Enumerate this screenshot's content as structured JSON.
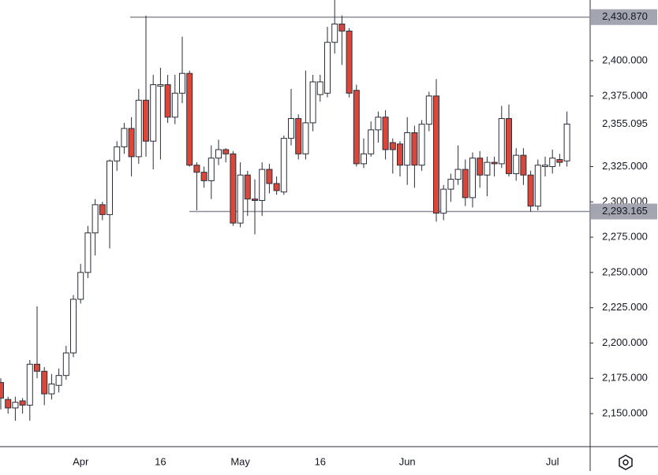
{
  "chart_data": {
    "type": "candlestick",
    "categories": [
      null,
      null,
      null,
      null,
      null,
      null,
      null,
      null,
      null,
      null,
      null,
      "Apr",
      null,
      null,
      null,
      null,
      null,
      null,
      null,
      null,
      null,
      null,
      "16",
      null,
      null,
      null,
      null,
      null,
      null,
      null,
      null,
      null,
      null,
      "May",
      null,
      null,
      null,
      null,
      null,
      null,
      null,
      null,
      null,
      null,
      "16",
      null,
      null,
      null,
      null,
      null,
      null,
      null,
      null,
      null,
      null,
      null,
      "Jun",
      null,
      null,
      null,
      null,
      null,
      null,
      null,
      null,
      null,
      null,
      null,
      null,
      null,
      null,
      null,
      null,
      null,
      null,
      null,
      "Jul",
      null,
      null
    ],
    "open": [
      2172,
      2160,
      2154,
      2159,
      2156,
      2185,
      2180,
      2164,
      2170,
      2177,
      2193,
      2231,
      2250,
      2278,
      2298,
      2291,
      2329,
      2339,
      2352,
      2332,
      2372,
      2343,
      2382,
      2383,
      2360,
      2377,
      2391,
      2326,
      2321,
      2315,
      2331,
      2337,
      2334,
      2285,
      2319,
      2302,
      2301,
      2323,
      2313,
      2307,
      2345,
      2359,
      2334,
      2356,
      2376,
      2377,
      2413,
      2426,
      2421,
      2379,
      2327,
      2334,
      2351,
      2360,
      2342,
      2341,
      2326,
      2349,
      2326,
      2355,
      2375,
      2292,
      2309,
      2316,
      2323,
      2303,
      2331,
      2319,
      2328,
      2327,
      2359,
      2320,
      2333,
      2319,
      2297,
      2325,
      2325,
      2330,
      2329
    ],
    "high": [
      2175,
      2162,
      2162,
      2161,
      2188,
      2226,
      2183,
      2178,
      2182,
      2198,
      2234,
      2256,
      2283,
      2302,
      2300,
      2330,
      2343,
      2356,
      2360,
      2380,
      2432,
      2390,
      2395,
      2390,
      2390,
      2417,
      2393,
      2328,
      2325,
      2340,
      2344,
      2338,
      2336,
      2328,
      2322,
      2316,
      2328,
      2327,
      2318,
      2347,
      2380,
      2362,
      2393,
      2390,
      2390,
      2424,
      2443,
      2432,
      2423,
      2383,
      2345,
      2357,
      2364,
      2365,
      2345,
      2343,
      2360,
      2354,
      2358,
      2378,
      2387,
      2312,
      2320,
      2340,
      2330,
      2335,
      2336,
      2332,
      2332,
      2368,
      2369,
      2338,
      2338,
      2322,
      2330,
      2332,
      2337,
      2334,
      2364
    ],
    "low": [
      2153,
      2150,
      2145,
      2150,
      2145,
      2175,
      2156,
      2160,
      2165,
      2174,
      2190,
      2228,
      2246,
      2262,
      2287,
      2267,
      2322,
      2334,
      2318,
      2327,
      2332,
      2323,
      2330,
      2356,
      2355,
      2370,
      2325,
      2294,
      2310,
      2302,
      2326,
      2328,
      2283,
      2282,
      2290,
      2277,
      2290,
      2306,
      2305,
      2305,
      2340,
      2330,
      2330,
      2350,
      2371,
      2374,
      2405,
      2397,
      2374,
      2325,
      2324,
      2332,
      2342,
      2330,
      2320,
      2318,
      2312,
      2310,
      2322,
      2350,
      2286,
      2287,
      2300,
      2312,
      2297,
      2296,
      2310,
      2304,
      2318,
      2324,
      2318,
      2315,
      2312,
      2293,
      2294,
      2318,
      2320,
      2325,
      2325
    ],
    "close": [
      2161,
      2154,
      2158,
      2156,
      2185,
      2180,
      2164,
      2171,
      2177,
      2193,
      2231,
      2250,
      2278,
      2298,
      2291,
      2329,
      2339,
      2352,
      2332,
      2372,
      2343,
      2383,
      2383,
      2360,
      2377,
      2391,
      2326,
      2321,
      2315,
      2331,
      2337,
      2334,
      2285,
      2319,
      2302,
      2301,
      2323,
      2313,
      2308,
      2345,
      2359,
      2334,
      2356,
      2385,
      2385,
      2413,
      2426,
      2421,
      2377,
      2327,
      2334,
      2351,
      2360,
      2337,
      2337,
      2326,
      2349,
      2326,
      2355,
      2375,
      2292,
      2309,
      2316,
      2323,
      2303,
      2331,
      2319,
      2328,
      2327,
      2359,
      2320,
      2333,
      2319,
      2297,
      2326,
      2326,
      2331,
      2328,
      2355.095
    ],
    "up_color": "#ffffff",
    "down_color": "#d9473a",
    "outline_color": "#2a2e39",
    "ylim": [
      2126.6,
      2443
    ],
    "yticks": [
      {
        "value": 2150,
        "label": "2,150.000"
      },
      {
        "value": 2175,
        "label": "2,175.000"
      },
      {
        "value": 2200,
        "label": "2,200.000"
      },
      {
        "value": 2225,
        "label": "2,225.000"
      },
      {
        "value": 2250,
        "label": "2,250.000"
      },
      {
        "value": 2275,
        "label": "2,275.000"
      },
      {
        "value": 2300,
        "label": "2,300.000"
      },
      {
        "value": 2325,
        "label": "2,325.000"
      },
      {
        "value": 2375,
        "label": "2,375.000"
      },
      {
        "value": 2400,
        "label": "2,400.000"
      }
    ],
    "levels": [
      {
        "value": 2430.87,
        "label": "2,430.870"
      },
      {
        "value": 2293.165,
        "label": "2,293.165"
      }
    ],
    "last_price": {
      "value": 2355.095,
      "label": "2,355.095"
    }
  }
}
